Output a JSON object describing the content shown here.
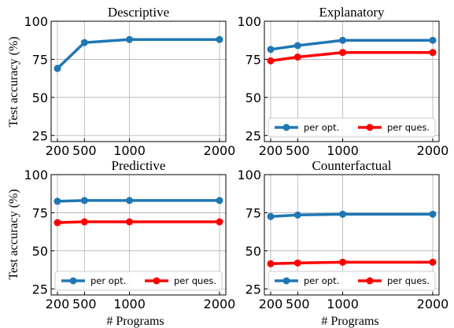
{
  "figure": {
    "ylabel": "Test accuracy (%)",
    "xlabel": "# Programs"
  },
  "chart_data": [
    {
      "type": "line",
      "title": "Descriptive",
      "x": [
        200,
        500,
        1000,
        2000
      ],
      "xticks": [
        "200",
        "500",
        "1000",
        "2000"
      ],
      "ylim": [
        21,
        100
      ],
      "yticks": [
        25,
        50,
        75,
        100
      ],
      "legend": null,
      "series": [
        {
          "values": [
            69,
            86,
            88,
            88
          ],
          "color": "#1f77b4"
        }
      ]
    },
    {
      "type": "line",
      "title": "Explanatory",
      "x": [
        200,
        500,
        1000,
        2000
      ],
      "xticks": [
        "200",
        "500",
        "1000",
        "2000"
      ],
      "ylim": [
        21,
        100
      ],
      "yticks": [
        25,
        50,
        75,
        100
      ],
      "legend": "bottom",
      "series": [
        {
          "name": "per opt.",
          "values": [
            81.5,
            84,
            87.5,
            87.5
          ],
          "color": "#1f77b4"
        },
        {
          "name": "per ques.",
          "values": [
            74,
            76.5,
            79.5,
            79.5
          ],
          "color": "#ff0000"
        }
      ]
    },
    {
      "type": "line",
      "title": "Predictive",
      "x": [
        200,
        500,
        1000,
        2000
      ],
      "xticks": [
        "200",
        "500",
        "1000",
        "2000"
      ],
      "ylim": [
        21,
        100
      ],
      "yticks": [
        25,
        50,
        75,
        100
      ],
      "legend": "bottom",
      "series": [
        {
          "name": "per opt.",
          "values": [
            82.5,
            83,
            83,
            83
          ],
          "color": "#1f77b4"
        },
        {
          "name": "per ques.",
          "values": [
            68.5,
            69,
            69,
            69
          ],
          "color": "#ff0000"
        }
      ]
    },
    {
      "type": "line",
      "title": "Counterfactual",
      "x": [
        200,
        500,
        1000,
        2000
      ],
      "xticks": [
        "200",
        "500",
        "1000",
        "2000"
      ],
      "ylim": [
        21,
        100
      ],
      "yticks": [
        25,
        50,
        75,
        100
      ],
      "legend": "bottom",
      "series": [
        {
          "name": "per opt.",
          "values": [
            72.5,
            73.5,
            74,
            74
          ],
          "color": "#1f77b4"
        },
        {
          "name": "per ques.",
          "values": [
            41.5,
            42,
            42.5,
            42.5
          ],
          "color": "#ff0000"
        }
      ]
    }
  ]
}
